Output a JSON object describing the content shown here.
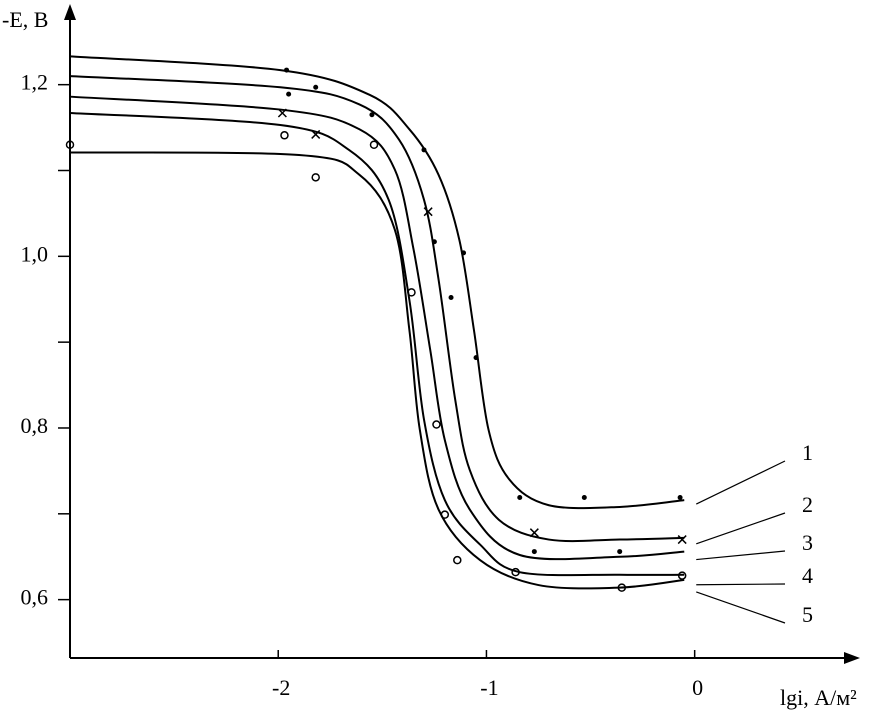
{
  "chart_data": {
    "type": "line",
    "ylabel": "-E, B",
    "xlabel": "lgi, А/м²",
    "xlim": [
      -3.0,
      0.77
    ],
    "ylim": [
      0.532,
      1.287
    ],
    "xticks": [
      -2,
      -1,
      0
    ],
    "yticks": [
      {
        "value": 0.6,
        "label": "0,6"
      },
      {
        "value": 0.8,
        "label": "0,8"
      },
      {
        "value": 1.0,
        "label": "1,0"
      },
      {
        "value": 1.2,
        "label": "1,2"
      }
    ],
    "yminor": [
      0.7,
      0.9,
      1.1
    ],
    "series": [
      {
        "name": "1",
        "color": "#000000",
        "marker": "dot",
        "x": [
          -3.0,
          -1.99,
          -1.56,
          -1.37,
          -1.23,
          -1.13,
          -1.06,
          -0.99,
          -0.89,
          -0.7,
          -0.36,
          -0.05
        ],
        "values": [
          1.233,
          1.217,
          1.188,
          1.148,
          1.095,
          1.019,
          0.914,
          0.798,
          0.74,
          0.71,
          0.708,
          0.716
        ],
        "points_x": [
          -1.96,
          -1.82,
          -1.55,
          -1.3,
          -1.11,
          -1.05,
          -0.84,
          -0.53,
          -0.07
        ],
        "points_y": [
          1.217,
          1.197,
          1.165,
          1.124,
          1.004,
          0.882,
          0.719,
          0.719,
          0.719
        ]
      },
      {
        "name": "2",
        "color": "#000000",
        "marker": "x",
        "x": [
          -3.0,
          -1.99,
          -1.61,
          -1.42,
          -1.3,
          -1.23,
          -1.15,
          -1.08,
          -0.94,
          -0.7,
          -0.36,
          -0.05
        ],
        "values": [
          1.21,
          1.197,
          1.177,
          1.136,
          1.066,
          0.973,
          0.833,
          0.751,
          0.693,
          0.67,
          0.67,
          0.672
        ],
        "points_x": [
          -1.98,
          -1.82,
          -1.28,
          -0.77,
          -0.06
        ],
        "points_y": [
          1.167,
          1.142,
          1.052,
          0.678,
          0.67
        ]
      },
      {
        "name": "3",
        "color": "#000000",
        "marker": "dot",
        "x": [
          -3.0,
          -1.99,
          -1.61,
          -1.44,
          -1.35,
          -1.27,
          -1.2,
          -1.08,
          -0.84,
          -0.36,
          -0.05
        ],
        "values": [
          1.186,
          1.171,
          1.148,
          1.101,
          1.008,
          0.891,
          0.786,
          0.705,
          0.652,
          0.65,
          0.656
        ],
        "points_x": [
          -1.95,
          -1.25,
          -1.17,
          -0.77,
          -0.36
        ],
        "points_y": [
          1.189,
          1.017,
          0.952,
          0.656,
          0.656
        ]
      },
      {
        "name": "4",
        "color": "#000000",
        "marker": "circle",
        "x": [
          -3.0,
          -1.99,
          -1.66,
          -1.47,
          -1.37,
          -1.3,
          -1.2,
          -1.03,
          -0.84,
          -0.36,
          -0.05
        ],
        "values": [
          1.167,
          1.153,
          1.124,
          1.066,
          0.949,
          0.81,
          0.716,
          0.664,
          0.632,
          0.629,
          0.629
        ],
        "points_x": [
          -1.97,
          -1.82,
          -1.36,
          -1.24,
          -0.86,
          -0.06
        ],
        "points_y": [
          1.141,
          1.092,
          0.958,
          0.804,
          0.632,
          0.628
        ]
      },
      {
        "name": "5",
        "color": "#000000",
        "marker": "circle",
        "x": [
          -3.0,
          -1.9,
          -1.61,
          -1.44,
          -1.37,
          -1.32,
          -1.23,
          -1.03,
          -0.75,
          -0.36,
          -0.05
        ],
        "values": [
          1.121,
          1.118,
          1.095,
          1.031,
          0.914,
          0.798,
          0.705,
          0.646,
          0.617,
          0.614,
          0.623
        ],
        "points_x": [
          -3.0,
          -1.54,
          -1.2,
          -1.14,
          -0.35
        ],
        "points_y": [
          1.13,
          1.13,
          0.699,
          0.646,
          0.614
        ]
      }
    ]
  }
}
